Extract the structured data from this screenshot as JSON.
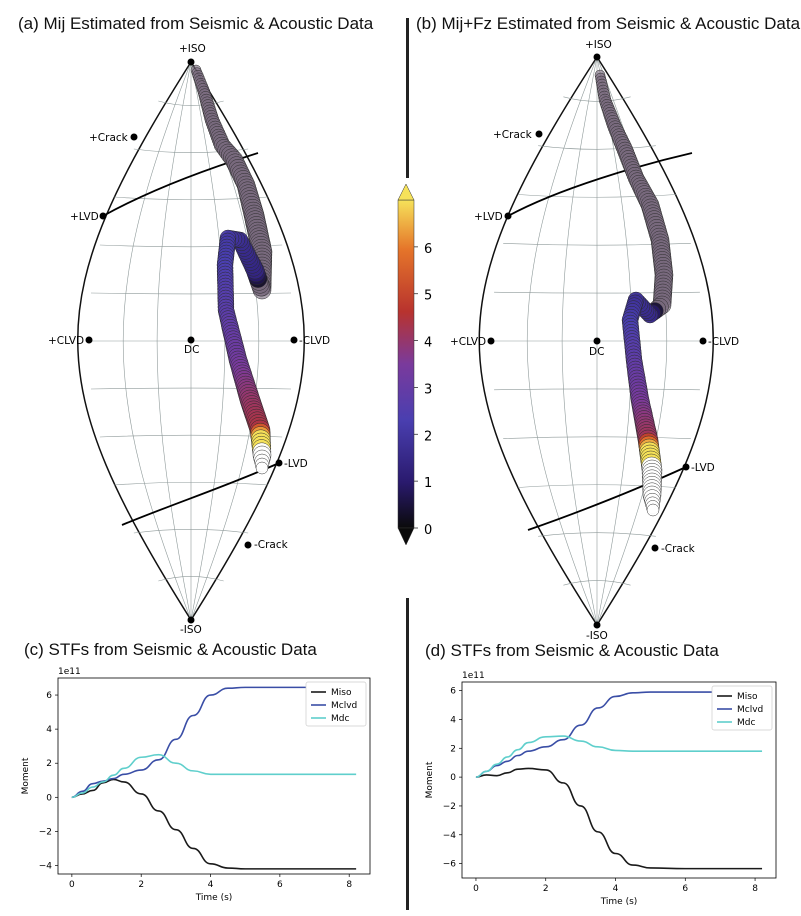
{
  "panels": {
    "a_title": "(a) Mij Estimated from Seismic & Acoustic Data",
    "b_title": "(b) Mij+Fz Estimated from Seismic & Acoustic Data",
    "c_title": "(c) STFs from Seismic & Acoustic Data",
    "d_title": "(d) STFs from Seismic & Acoustic Data"
  },
  "lune_labels": {
    "iso_pos": "+ISO",
    "iso_neg": "-ISO",
    "crack_pos": "+Crack",
    "crack_neg": "-Crack",
    "lvd_pos": "+LVD",
    "lvd_neg": "-LVD",
    "clvd_pos": "+CLVD",
    "clvd_neg": "-CLVD",
    "dc": "DC"
  },
  "colorbar": {
    "ticks": [
      "0",
      "1",
      "2",
      "3",
      "4",
      "5",
      "6"
    ],
    "colormap": [
      "#0a0a0a",
      "#2a1a6e",
      "#4a3fb0",
      "#7a3a9c",
      "#b8332e",
      "#e5752a",
      "#f6e25a"
    ]
  },
  "chart_data": [
    {
      "type": "line",
      "title": "(c) STFs from Seismic & Acoustic Data",
      "xlabel": "Time (s)",
      "ylabel": "Moment",
      "exponent": "1e11",
      "xlim": [
        -0.4,
        8.6
      ],
      "ylim": [
        -4.5,
        7.0
      ],
      "xticks": [
        0,
        2,
        4,
        6,
        8
      ],
      "yticks": [
        -4,
        -2,
        0,
        2,
        4,
        6
      ],
      "legend": [
        "Miso",
        "Mclvd",
        "Mdc"
      ],
      "series": [
        {
          "name": "Miso",
          "color": "#1a1a1a",
          "x": [
            0,
            0.3,
            0.6,
            0.9,
            1.2,
            1.5,
            2.0,
            2.5,
            3.0,
            3.5,
            4.0,
            4.5,
            5,
            6,
            7,
            8.2
          ],
          "y": [
            0,
            0.2,
            0.4,
            0.85,
            1.05,
            0.9,
            0.2,
            -0.8,
            -1.9,
            -3.0,
            -3.9,
            -4.15,
            -4.2,
            -4.2,
            -4.2,
            -4.2
          ]
        },
        {
          "name": "Mclvd",
          "color": "#3a4ea6",
          "x": [
            0,
            0.3,
            0.6,
            0.9,
            1.2,
            1.5,
            2.0,
            2.5,
            3.0,
            3.5,
            4.0,
            4.5,
            5,
            6,
            7,
            8.2
          ],
          "y": [
            0,
            0.35,
            0.8,
            0.95,
            1.1,
            1.35,
            1.6,
            2.2,
            3.4,
            4.8,
            6.0,
            6.4,
            6.45,
            6.45,
            6.45,
            6.45
          ]
        },
        {
          "name": "Mdc",
          "color": "#5fcfcc",
          "x": [
            0,
            0.3,
            0.6,
            0.9,
            1.2,
            1.5,
            2.0,
            2.5,
            3.0,
            3.5,
            4.0,
            4.5,
            5,
            6,
            7,
            8.2
          ],
          "y": [
            0,
            0.25,
            0.6,
            0.9,
            1.3,
            1.7,
            2.35,
            2.5,
            2.0,
            1.55,
            1.35,
            1.35,
            1.35,
            1.35,
            1.35,
            1.35
          ]
        }
      ]
    },
    {
      "type": "line",
      "title": "(d) STFs from Seismic & Acoustic Data",
      "xlabel": "Time (s)",
      "ylabel": "Moment",
      "exponent": "1e11",
      "xlim": [
        -0.4,
        8.6
      ],
      "ylim": [
        -7.0,
        6.6
      ],
      "xticks": [
        0,
        2,
        4,
        6,
        8
      ],
      "yticks": [
        -6,
        -4,
        -2,
        0,
        2,
        4,
        6
      ],
      "legend": [
        "Miso",
        "Mclvd",
        "Mdc"
      ],
      "series": [
        {
          "name": "Miso",
          "color": "#1a1a1a",
          "x": [
            0,
            0.3,
            0.6,
            0.9,
            1.2,
            1.5,
            2.0,
            2.5,
            3.0,
            3.5,
            4.0,
            4.5,
            5,
            6,
            7,
            8.2
          ],
          "y": [
            0,
            0.15,
            0.1,
            0.3,
            0.55,
            0.6,
            0.5,
            -0.4,
            -2.0,
            -3.8,
            -5.3,
            -6.1,
            -6.3,
            -6.35,
            -6.35,
            -6.35
          ]
        },
        {
          "name": "Mclvd",
          "color": "#3a4ea6",
          "x": [
            0,
            0.3,
            0.6,
            0.9,
            1.2,
            1.5,
            2.0,
            2.5,
            3.0,
            3.5,
            4.0,
            4.5,
            5,
            6,
            7,
            8.2
          ],
          "y": [
            0,
            0.4,
            0.8,
            1.1,
            1.5,
            1.8,
            2.1,
            2.6,
            3.6,
            4.8,
            5.6,
            5.85,
            5.9,
            5.9,
            5.9,
            5.9
          ]
        },
        {
          "name": "Mdc",
          "color": "#5fcfcc",
          "x": [
            0,
            0.3,
            0.6,
            0.9,
            1.2,
            1.5,
            2.0,
            2.5,
            3.0,
            3.5,
            4.0,
            4.5,
            5,
            6,
            7,
            8.2
          ],
          "y": [
            0,
            0.4,
            0.9,
            1.4,
            1.9,
            2.4,
            2.8,
            2.85,
            2.5,
            2.1,
            1.85,
            1.8,
            1.8,
            1.8,
            1.8,
            1.8
          ]
        }
      ]
    }
  ]
}
